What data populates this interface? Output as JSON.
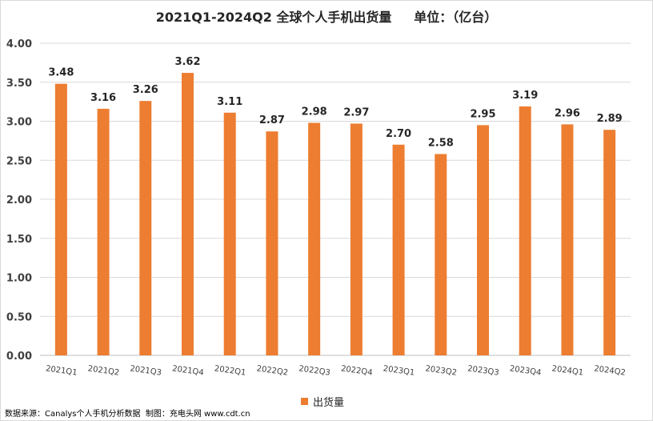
{
  "chart_data": {
    "type": "bar",
    "title": "2021Q1-2024Q2 全球个人手机出货量     单位：（亿台）",
    "categories": [
      "2021Q1",
      "2021Q2",
      "2021Q3",
      "2021Q4",
      "2022Q1",
      "2022Q2",
      "2022Q3",
      "2022Q4",
      "2023Q1",
      "2023Q2",
      "2023Q3",
      "2023Q4",
      "2024Q1",
      "2024Q2"
    ],
    "series": [
      {
        "name": "出货量",
        "values": [
          3.48,
          3.16,
          3.26,
          3.62,
          3.11,
          2.87,
          2.98,
          2.97,
          2.7,
          2.58,
          2.95,
          3.19,
          2.96,
          2.89
        ]
      }
    ],
    "data_labels": [
      "3.48",
      "3.16",
      "3.26",
      "3.62",
      "3.11",
      "2.87",
      "2.98",
      "2.97",
      "2.70",
      "2.58",
      "2.95",
      "3.19",
      "2.96",
      "2.89"
    ],
    "yticks": [
      "0.00",
      "0.50",
      "1.00",
      "1.50",
      "2.00",
      "2.50",
      "3.00",
      "3.50",
      "4.00"
    ],
    "ylim": [
      0,
      4
    ],
    "grid": true,
    "legend_position": "bottom",
    "bar_color": "#ED7D31"
  },
  "footer": {
    "source": "数据来源：Canalys个人手机分析数据  制图：充电头网 www.cdt.cn"
  }
}
